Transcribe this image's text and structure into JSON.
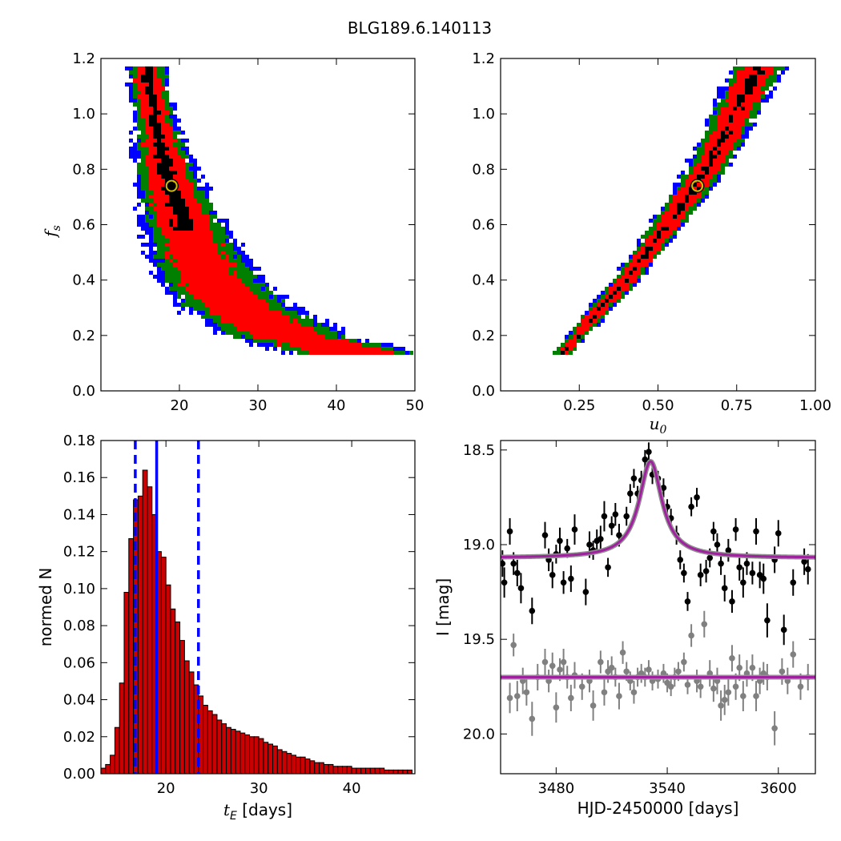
{
  "figure": {
    "title": "BLG189.6.140113"
  },
  "chart_data": [
    {
      "id": "fs_vs_tE",
      "type": "heatmap",
      "xlabel": "",
      "ylabel": "f_s",
      "ylabel_display": "f",
      "ylabel_sub": "s",
      "xlim": [
        10,
        50
      ],
      "ylim": [
        0.0,
        1.2
      ],
      "xticks": [
        20,
        30,
        40,
        50
      ],
      "yticks": [
        0.0,
        0.2,
        0.4,
        0.6,
        0.8,
        1.0,
        1.2
      ],
      "xtick_labels": [
        "20",
        "30",
        "40",
        "50"
      ],
      "ytick_labels": [
        "0.0",
        "0.2",
        "0.4",
        "0.6",
        "0.8",
        "1.0",
        "1.2"
      ],
      "best_fit": {
        "x": 19.0,
        "y": 0.74
      },
      "confidence_colors": {
        "innermost": "#000000",
        "inner": "#ff0000",
        "middle": "#007f00",
        "outer": "#0000ff"
      },
      "band": {
        "fs": [
          0.14,
          0.2,
          0.3,
          0.4,
          0.5,
          0.6,
          0.7,
          0.8,
          0.9,
          1.0,
          1.1,
          1.16
        ],
        "center_tE": [
          42,
          33.5,
          27.5,
          24.0,
          22.0,
          20.5,
          19.3,
          18.3,
          17.5,
          16.8,
          16.2,
          16.0
        ]
      }
    },
    {
      "id": "fs_vs_u0",
      "type": "heatmap",
      "xlabel": "u_0",
      "xlabel_display": "u",
      "xlabel_sub": "0",
      "ylabel": "",
      "xlim": [
        0.0,
        1.0
      ],
      "ylim": [
        0.0,
        1.2
      ],
      "xticks": [
        0.25,
        0.5,
        0.75,
        1.0
      ],
      "yticks": [
        0.0,
        0.2,
        0.4,
        0.6,
        0.8,
        1.0,
        1.2
      ],
      "xtick_labels": [
        "0.25",
        "0.50",
        "0.75",
        "1.00"
      ],
      "ytick_labels": [
        "0.0",
        "0.2",
        "0.4",
        "0.6",
        "0.8",
        "1.0",
        "1.2"
      ],
      "best_fit": {
        "x": 0.625,
        "y": 0.74
      },
      "confidence_colors": {
        "innermost": "#000000",
        "inner": "#ff0000",
        "middle": "#007f00",
        "outer": "#0000ff"
      },
      "band": {
        "fs": [
          0.14,
          0.2,
          0.3,
          0.4,
          0.5,
          0.6,
          0.7,
          0.8,
          0.9,
          1.0,
          1.1,
          1.16
        ],
        "center_u0": [
          0.2,
          0.245,
          0.32,
          0.4,
          0.465,
          0.53,
          0.595,
          0.655,
          0.7,
          0.745,
          0.79,
          0.82
        ]
      }
    },
    {
      "id": "tE_histogram",
      "type": "bar",
      "xlabel": "t_E [days]",
      "xlabel_math": "t",
      "xlabel_sub": "E",
      "xlabel_rest": " [days]",
      "ylabel": "normed N",
      "xlim": [
        13,
        46.8
      ],
      "ylim": [
        0.0,
        0.18
      ],
      "xticks": [
        20,
        30,
        40
      ],
      "yticks": [
        0.0,
        0.02,
        0.04,
        0.06,
        0.08,
        0.1,
        0.12,
        0.14,
        0.16,
        0.18
      ],
      "xtick_labels": [
        "20",
        "30",
        "40"
      ],
      "ytick_labels": [
        "0.00",
        "0.02",
        "0.04",
        "0.06",
        "0.08",
        "0.10",
        "0.12",
        "0.14",
        "0.16",
        "0.18"
      ],
      "bin_start": 13.0,
      "bin_width": 0.5,
      "values": [
        0.003,
        0.005,
        0.01,
        0.025,
        0.049,
        0.098,
        0.127,
        0.148,
        0.15,
        0.164,
        0.155,
        0.14,
        0.12,
        0.117,
        0.102,
        0.089,
        0.082,
        0.072,
        0.061,
        0.055,
        0.048,
        0.042,
        0.037,
        0.034,
        0.032,
        0.029,
        0.027,
        0.025,
        0.024,
        0.023,
        0.022,
        0.021,
        0.02,
        0.02,
        0.019,
        0.017,
        0.016,
        0.015,
        0.013,
        0.012,
        0.011,
        0.01,
        0.009,
        0.009,
        0.008,
        0.007,
        0.006,
        0.006,
        0.005,
        0.005,
        0.004,
        0.004,
        0.004,
        0.004,
        0.003,
        0.003,
        0.003,
        0.003,
        0.003,
        0.003,
        0.003,
        0.002,
        0.002,
        0.002,
        0.002,
        0.002,
        0.002
      ],
      "bar_color": "#cc0000",
      "median_line": 19.0,
      "interval_lines": [
        16.7,
        23.5
      ],
      "line_color": "#0000ff"
    },
    {
      "id": "light_curve",
      "type": "scatter",
      "xlabel": "HJD-2450000 [days]",
      "ylabel": "I [mag]",
      "xlim": [
        3450,
        3620
      ],
      "ylim": [
        20.21,
        18.45
      ],
      "inverted_y": true,
      "xticks": [
        3480,
        3540,
        3600
      ],
      "yticks": [
        18.5,
        19.0,
        19.5,
        20.0
      ],
      "xtick_labels": [
        "3480",
        "3540",
        "3600"
      ],
      "ytick_labels": [
        "18.5",
        "19.0",
        "19.5",
        "20.0"
      ],
      "model": {
        "t0": 3531,
        "baseline": 19.07,
        "peak": 18.56,
        "width": 7.5,
        "color": "#a020a0"
      },
      "flat_model": {
        "level": 19.7,
        "color": "#a020a0"
      },
      "series": [
        {
          "color": "#000000",
          "points": [
            [
              3451,
              19.1,
              0.07
            ],
            [
              3452,
              19.2,
              0.08
            ],
            [
              3455,
              18.93,
              0.07
            ],
            [
              3457,
              19.1,
              0.06
            ],
            [
              3459,
              19.15,
              0.07
            ],
            [
              3461,
              19.23,
              0.08
            ],
            [
              3467,
              19.35,
              0.07
            ],
            [
              3474,
              18.95,
              0.07
            ],
            [
              3476,
              19.08,
              0.06
            ],
            [
              3478,
              19.16,
              0.07
            ],
            [
              3480,
              19.05,
              0.05
            ],
            [
              3482,
              18.98,
              0.07
            ],
            [
              3484,
              19.2,
              0.06
            ],
            [
              3486,
              19.02,
              0.05
            ],
            [
              3488,
              19.18,
              0.07
            ],
            [
              3490,
              18.92,
              0.08
            ],
            [
              3496,
              19.25,
              0.07
            ],
            [
              3498,
              19.0,
              0.07
            ],
            [
              3500,
              19.03,
              0.05
            ],
            [
              3502,
              18.98,
              0.06
            ],
            [
              3504,
              18.97,
              0.07
            ],
            [
              3506,
              18.85,
              0.08
            ],
            [
              3508,
              19.12,
              0.05
            ],
            [
              3510,
              18.9,
              0.05
            ],
            [
              3512,
              18.84,
              0.06
            ],
            [
              3514,
              18.95,
              0.06
            ],
            [
              3518,
              18.85,
              0.05
            ],
            [
              3520,
              18.73,
              0.05
            ],
            [
              3522,
              18.65,
              0.05
            ],
            [
              3524,
              18.73,
              0.04
            ],
            [
              3526,
              18.66,
              0.05
            ],
            [
              3528,
              18.55,
              0.05
            ],
            [
              3530,
              18.51,
              0.05
            ],
            [
              3532,
              18.63,
              0.05
            ],
            [
              3535,
              18.65,
              0.04
            ],
            [
              3538,
              18.7,
              0.05
            ],
            [
              3540,
              18.8,
              0.04
            ],
            [
              3542,
              18.86,
              0.05
            ],
            [
              3545,
              18.95,
              0.05
            ],
            [
              3547,
              19.08,
              0.05
            ],
            [
              3549,
              19.15,
              0.05
            ],
            [
              3551,
              19.3,
              0.05
            ],
            [
              3553,
              18.8,
              0.05
            ],
            [
              3556,
              18.75,
              0.05
            ],
            [
              3558,
              19.16,
              0.06
            ],
            [
              3561,
              19.14,
              0.06
            ],
            [
              3563,
              19.07,
              0.05
            ],
            [
              3565,
              18.93,
              0.05
            ],
            [
              3567,
              19.0,
              0.06
            ],
            [
              3569,
              19.1,
              0.06
            ],
            [
              3571,
              19.23,
              0.07
            ],
            [
              3573,
              19.03,
              0.06
            ],
            [
              3575,
              19.3,
              0.06
            ],
            [
              3577,
              18.92,
              0.06
            ],
            [
              3579,
              19.12,
              0.07
            ],
            [
              3581,
              19.2,
              0.08
            ],
            [
              3583,
              19.1,
              0.06
            ],
            [
              3586,
              19.15,
              0.06
            ],
            [
              3588,
              18.93,
              0.07
            ],
            [
              3590,
              19.16,
              0.07
            ],
            [
              3592,
              19.18,
              0.08
            ],
            [
              3594,
              19.4,
              0.09
            ],
            [
              3598,
              19.08,
              0.07
            ],
            [
              3600,
              18.94,
              0.07
            ],
            [
              3603,
              19.45,
              0.08
            ],
            [
              3608,
              19.2,
              0.07
            ],
            [
              3614,
              19.09,
              0.07
            ],
            [
              3616,
              19.13,
              0.08
            ]
          ]
        },
        {
          "color": "#808080",
          "points": [
            [
              3455,
              19.81,
              0.08
            ],
            [
              3457,
              19.53,
              0.06
            ],
            [
              3459,
              19.8,
              0.08
            ],
            [
              3462,
              19.72,
              0.07
            ],
            [
              3464,
              19.78,
              0.07
            ],
            [
              3467,
              19.92,
              0.09
            ],
            [
              3470,
              19.7,
              0.07
            ],
            [
              3474,
              19.62,
              0.07
            ],
            [
              3476,
              19.72,
              0.06
            ],
            [
              3478,
              19.64,
              0.07
            ],
            [
              3480,
              19.86,
              0.08
            ],
            [
              3482,
              19.66,
              0.06
            ],
            [
              3484,
              19.62,
              0.07
            ],
            [
              3486,
              19.7,
              0.06
            ],
            [
              3488,
              19.81,
              0.07
            ],
            [
              3490,
              19.69,
              0.07
            ],
            [
              3494,
              19.75,
              0.07
            ],
            [
              3498,
              19.72,
              0.06
            ],
            [
              3500,
              19.85,
              0.08
            ],
            [
              3504,
              19.62,
              0.06
            ],
            [
              3506,
              19.78,
              0.07
            ],
            [
              3508,
              19.67,
              0.06
            ],
            [
              3510,
              19.65,
              0.06
            ],
            [
              3512,
              19.7,
              0.05
            ],
            [
              3514,
              19.8,
              0.07
            ],
            [
              3516,
              19.57,
              0.06
            ],
            [
              3518,
              19.67,
              0.05
            ],
            [
              3520,
              19.72,
              0.05
            ],
            [
              3522,
              19.78,
              0.06
            ],
            [
              3524,
              19.7,
              0.05
            ],
            [
              3526,
              19.68,
              0.05
            ],
            [
              3528,
              19.7,
              0.05
            ],
            [
              3530,
              19.66,
              0.05
            ],
            [
              3532,
              19.72,
              0.05
            ],
            [
              3535,
              19.71,
              0.05
            ],
            [
              3538,
              19.68,
              0.05
            ],
            [
              3540,
              19.73,
              0.05
            ],
            [
              3542,
              19.75,
              0.05
            ],
            [
              3544,
              19.7,
              0.05
            ],
            [
              3546,
              19.67,
              0.05
            ],
            [
              3549,
              19.62,
              0.05
            ],
            [
              3551,
              19.74,
              0.05
            ],
            [
              3553,
              19.48,
              0.06
            ],
            [
              3556,
              19.72,
              0.06
            ],
            [
              3558,
              19.75,
              0.06
            ],
            [
              3560,
              19.42,
              0.07
            ],
            [
              3563,
              19.68,
              0.07
            ],
            [
              3565,
              19.76,
              0.07
            ],
            [
              3567,
              19.72,
              0.07
            ],
            [
              3569,
              19.85,
              0.08
            ],
            [
              3571,
              19.82,
              0.08
            ],
            [
              3573,
              19.78,
              0.07
            ],
            [
              3575,
              19.6,
              0.07
            ],
            [
              3577,
              19.75,
              0.07
            ],
            [
              3579,
              19.65,
              0.07
            ],
            [
              3581,
              19.8,
              0.08
            ],
            [
              3583,
              19.68,
              0.07
            ],
            [
              3586,
              19.65,
              0.07
            ],
            [
              3588,
              19.8,
              0.08
            ],
            [
              3590,
              19.72,
              0.07
            ],
            [
              3592,
              19.68,
              0.06
            ],
            [
              3594,
              19.7,
              0.07
            ],
            [
              3598,
              19.97,
              0.09
            ],
            [
              3602,
              19.67,
              0.07
            ],
            [
              3605,
              19.72,
              0.07
            ],
            [
              3608,
              19.58,
              0.07
            ],
            [
              3612,
              19.75,
              0.07
            ],
            [
              3616,
              19.7,
              0.07
            ]
          ]
        }
      ]
    }
  ]
}
